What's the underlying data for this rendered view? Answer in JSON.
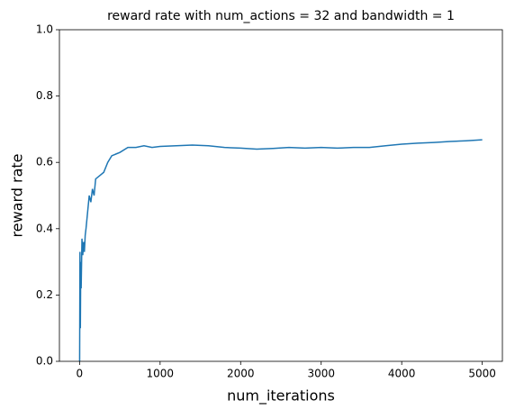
{
  "chart_data": {
    "type": "line",
    "title": "reward rate with num_actions = 32 and bandwidth = 1",
    "x_label": "num_iterations",
    "y_label": "reward rate",
    "series": [
      {
        "name": "reward rate",
        "color": "#1f77b4",
        "x": [
          1,
          5,
          10,
          15,
          20,
          30,
          40,
          50,
          60,
          70,
          80,
          100,
          120,
          140,
          160,
          180,
          200,
          250,
          300,
          350,
          400,
          450,
          500,
          600,
          700,
          800,
          900,
          1000,
          1200,
          1400,
          1600,
          1800,
          2000,
          2200,
          2400,
          2600,
          2800,
          3000,
          3200,
          3400,
          3600,
          3800,
          4000,
          4200,
          4400,
          4600,
          4800,
          5000
        ],
        "values": [
          0,
          0.33,
          0.1,
          0.3,
          0.22,
          0.37,
          0.32,
          0.36,
          0.33,
          0.38,
          0.4,
          0.45,
          0.5,
          0.48,
          0.52,
          0.5,
          0.55,
          0.56,
          0.57,
          0.6,
          0.62,
          0.625,
          0.63,
          0.645,
          0.645,
          0.65,
          0.645,
          0.648,
          0.65,
          0.652,
          0.65,
          0.645,
          0.643,
          0.64,
          0.642,
          0.645,
          0.643,
          0.645,
          0.643,
          0.645,
          0.645,
          0.65,
          0.655,
          0.658,
          0.66,
          0.663,
          0.665,
          0.668
        ]
      }
    ],
    "xlim": [
      -250,
      5250
    ],
    "xticks": [
      0,
      1000,
      2000,
      3000,
      4000,
      5000
    ],
    "ylim": [
      0,
      1
    ],
    "yticks": [
      {
        "value": 0,
        "label": "0.0"
      },
      0.2,
      0.4,
      0.6,
      0.8,
      {
        "value": 1,
        "label": "1.0"
      }
    ]
  }
}
